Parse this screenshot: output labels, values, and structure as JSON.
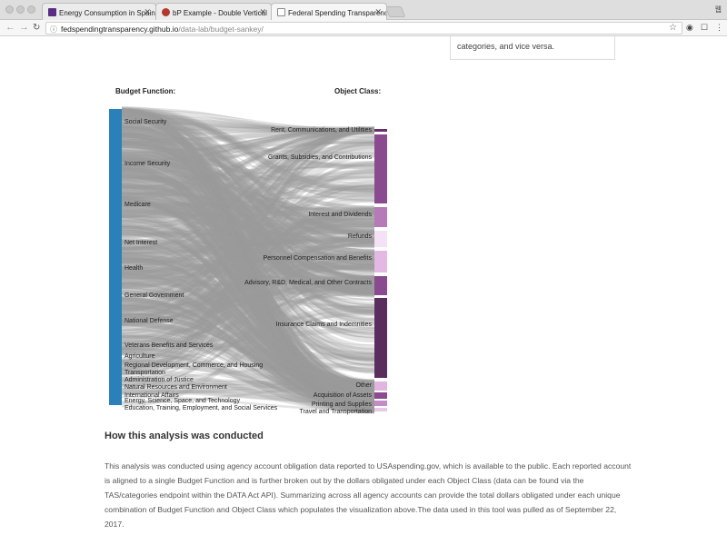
{
  "browser": {
    "tabs": [
      {
        "title": "Energy Consumption in Spain",
        "active": false,
        "favicon_color": "#5b2c83"
      },
      {
        "title": "bP Example - Double Vertical",
        "active": false,
        "favicon_color": "#b03a2e"
      },
      {
        "title": "Federal Spending Transparenc",
        "active": true,
        "favicon_color": "#888888"
      }
    ],
    "url_host": "fedspendingtransparency.github.io",
    "url_path": "/data-lab/budget-sankey/",
    "profile_label": "웹"
  },
  "infobox_text": "categories, and vice versa.",
  "chart": {
    "left_heading": "Budget Function:",
    "right_heading": "Object Class:"
  },
  "chart_data": {
    "type": "sankey",
    "left_nodes": [
      {
        "label": "Social Security",
        "color": "#2c4a6b"
      },
      {
        "label": "Income Security",
        "color": "#2b8fc4"
      },
      {
        "label": "Medicare",
        "color": "#4a79b3"
      },
      {
        "label": "Net Interest",
        "color": "#22aacc"
      },
      {
        "label": "Health",
        "color": "#44d6ea"
      },
      {
        "label": "General Government",
        "color": "#2a4a66"
      },
      {
        "label": "National Defense",
        "color": "#a8daf0"
      },
      {
        "label": "Veterans Benefits and Services",
        "color": "#3de0f0"
      },
      {
        "label": "Agriculture",
        "color": "#3a73b0"
      },
      {
        "label": "Regional Development, Commerce, and Housing",
        "color": "#5fbfe0"
      },
      {
        "label": "Transportation",
        "color": "#3b6ea6"
      },
      {
        "label": "Administration of Justice",
        "color": "#2c4a6b"
      },
      {
        "label": "Natural Resources and Environment",
        "color": "#b3e0f0"
      },
      {
        "label": "International Affairs",
        "color": "#3a7ab5"
      },
      {
        "label": "Energy, Science, Space, and Technology",
        "color": "#33c0e0"
      },
      {
        "label": "Education, Training, Employment, and Social Services",
        "color": "#2a80b8"
      }
    ],
    "right_nodes": [
      {
        "label": "Rent, Communications, and Utilities",
        "color": "#6a2f6a"
      },
      {
        "label": "Grants, Subsidies, and Contributions",
        "color": "#8a4a8f"
      },
      {
        "label": "Interest and Dividends",
        "color": "#b67ab8"
      },
      {
        "label": "Refunds",
        "color": "#f5e1f5"
      },
      {
        "label": "Personnel Compensation and Benefits",
        "color": "#e3b8e3"
      },
      {
        "label": "Advisory, R&D, Medical, and Other Contracts",
        "color": "#8a4a8f"
      },
      {
        "label": "Insurance Claims and Indemnities",
        "color": "#5a2e5c"
      },
      {
        "label": "Other",
        "color": "#e2b4e0"
      },
      {
        "label": "Acquisition of Assets",
        "color": "#8a4a8f"
      },
      {
        "label": "Printing and Supplies",
        "color": "#c48bc6"
      },
      {
        "label": "Travel and Transportation",
        "color": "#e8c8e8"
      }
    ],
    "link_color": "#9a9a9a"
  },
  "section": {
    "title": "How this analysis was conducted",
    "paragraph": "This analysis was conducted using agency account obligation data reported to USAspending.gov, which is available to the public. Each reported account is aligned to a single Budget Function and is further broken out by the dollars obligated under each Object Class (data can be found via the TAS/categories endpoint within the DATA Act API). Summarizing across all agency accounts can provide the total dollars obligated under each unique combination of Budget Function and Object Class which populates the visualization above.The data used in this tool was pulled as of September 22, 2017."
  }
}
